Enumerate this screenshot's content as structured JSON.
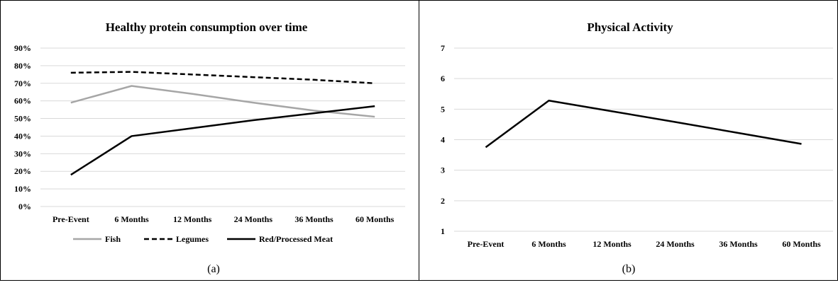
{
  "chart_data": [
    {
      "type": "line",
      "title": "Healthy protein consumption over time",
      "caption": "(a)",
      "categories": [
        "Pre-Event",
        "6 Months",
        "12 Months",
        "24 Months",
        "36 Months",
        "60 Months"
      ],
      "y_ticks": [
        "90%",
        "80%",
        "70%",
        "60%",
        "50%",
        "40%",
        "30%",
        "20%",
        "10%",
        "0%"
      ],
      "ylim": [
        0,
        90
      ],
      "grid": true,
      "legend_position": "bottom",
      "series": [
        {
          "name": "Fish",
          "values": [
            59,
            68.5,
            64,
            59,
            54.5,
            51
          ],
          "color": "#a6a6a6",
          "style": "solid"
        },
        {
          "name": "Legumes",
          "values": [
            76,
            76.5,
            75,
            73.5,
            72,
            70
          ],
          "color": "#000000",
          "style": "dashed"
        },
        {
          "name": "Red/Processed Meat",
          "values": [
            18,
            40,
            44.5,
            49,
            53,
            57
          ],
          "color": "#000000",
          "style": "solid"
        }
      ]
    },
    {
      "type": "line",
      "title": "Physical Activity",
      "caption": "(b)",
      "categories": [
        "Pre-Event",
        "6 Months",
        "12 Months",
        "24 Months",
        "36 Months",
        "60 Months"
      ],
      "y_ticks": [
        "7",
        "6",
        "5",
        "4",
        "3",
        "2",
        "1"
      ],
      "ylim": [
        1,
        7
      ],
      "grid": true,
      "series": [
        {
          "values": [
            3.75,
            5.28,
            4.93,
            4.58,
            4.22,
            3.86
          ],
          "color": "#000000",
          "style": "solid"
        }
      ]
    }
  ]
}
